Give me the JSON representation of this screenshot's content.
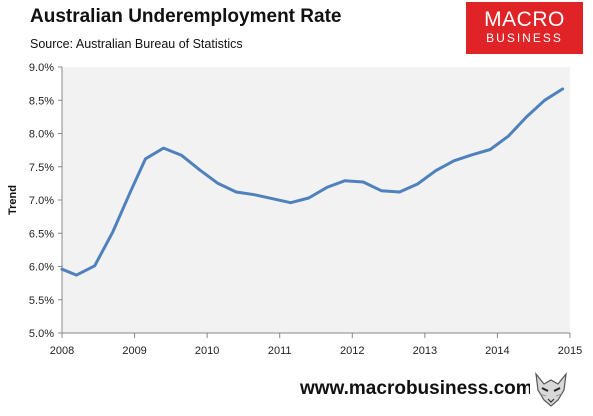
{
  "header": {
    "title": "Australian Underemployment Rate",
    "subtitle": "Source: Australian Bureau of Statistics"
  },
  "logo": {
    "line1": "MACRO",
    "line2": "BUSINESS"
  },
  "footer": {
    "url": "www.macrobusiness.com.au",
    "mascot_icon": "wolf-head-icon"
  },
  "colors": {
    "line": "#4f81bd",
    "plot_bg": "#f2f2f2",
    "brand_red": "#e02327"
  },
  "chart_data": {
    "type": "line",
    "title": "Australian Underemployment Rate",
    "ylabel": "Trend",
    "xlabel": "",
    "xlim": [
      2008,
      2015
    ],
    "ylim": [
      5.0,
      9.0
    ],
    "x_ticks": [
      "2008",
      "2009",
      "2010",
      "2011",
      "2012",
      "2013",
      "2014",
      "2015"
    ],
    "y_ticks": [
      "5.0%",
      "5.5%",
      "6.0%",
      "6.5%",
      "7.0%",
      "7.5%",
      "8.0%",
      "8.5%",
      "9.0%"
    ],
    "grid": false,
    "series": [
      {
        "x": [
          2008.0,
          2008.2,
          2008.45,
          2008.7,
          2008.95,
          2009.15,
          2009.4,
          2009.65,
          2009.9,
          2010.15,
          2010.4,
          2010.65,
          2010.9,
          2011.15,
          2011.4,
          2011.65,
          2011.9,
          2012.15,
          2012.4,
          2012.65,
          2012.9,
          2013.15,
          2013.4,
          2013.65,
          2013.9,
          2014.15,
          2014.4,
          2014.65,
          2014.9
        ],
        "values": [
          5.96,
          5.87,
          6.01,
          6.52,
          7.14,
          7.62,
          7.78,
          7.67,
          7.45,
          7.25,
          7.12,
          7.08,
          7.02,
          6.96,
          7.03,
          7.19,
          7.29,
          7.27,
          7.14,
          7.12,
          7.24,
          7.44,
          7.59,
          7.68,
          7.76,
          7.96,
          8.25,
          8.5,
          8.67
        ]
      }
    ]
  }
}
